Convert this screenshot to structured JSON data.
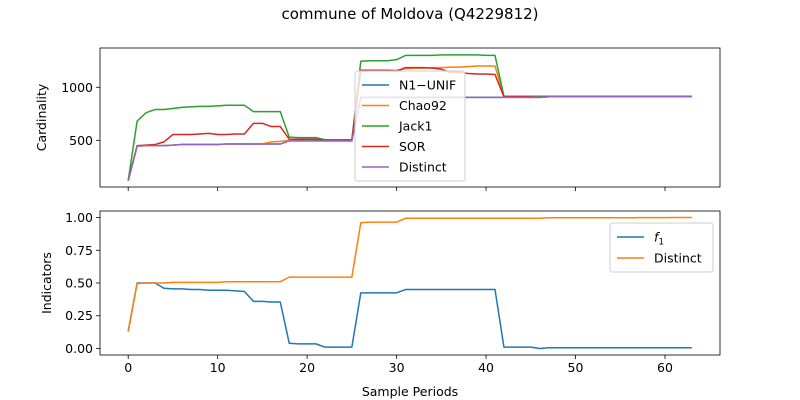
{
  "title": "commune of Moldova (Q4229812)",
  "colors": {
    "blue": "#1f77b4",
    "orange": "#ff7f0e",
    "green": "#2ca02c",
    "red": "#d62728",
    "purple": "#9467bd"
  },
  "chart_data": [
    {
      "type": "line",
      "xlabel": "",
      "ylabel": "Cardinality",
      "xlim": [
        -3.15,
        66.15
      ],
      "ylim": [
        60,
        1370
      ],
      "xticks": [
        0,
        10,
        20,
        30,
        40,
        50,
        60
      ],
      "xticklabels": [
        "",
        "",
        "",
        "",
        "",
        "",
        ""
      ],
      "yticks": [
        500,
        1000
      ],
      "yticklabels": [
        "500",
        "1000"
      ],
      "legend_position": "center",
      "series": [
        {
          "name": "N1−UNIF",
          "color": "#1f77b4",
          "x": [
            0,
            1,
            2,
            3,
            4,
            5,
            6,
            7,
            8,
            9,
            10,
            11,
            12,
            13,
            14,
            15,
            16,
            17,
            18,
            19,
            20,
            21,
            22,
            23,
            24,
            25,
            26,
            27,
            28,
            29,
            30,
            31,
            32,
            33,
            34,
            35,
            36,
            37,
            38,
            39,
            40,
            41,
            42,
            43,
            44,
            45,
            46,
            47,
            48,
            49,
            50,
            51,
            52,
            53,
            54,
            55,
            56,
            57,
            58,
            59,
            60,
            61,
            62,
            63
          ],
          "y": [
            120,
            445,
            450,
            450,
            450,
            455,
            460,
            460,
            460,
            460,
            460,
            465,
            465,
            465,
            465,
            465,
            465,
            465,
            495,
            495,
            495,
            495,
            495,
            495,
            495,
            495,
            905,
            905,
            905,
            905,
            905,
            905,
            905,
            905,
            905,
            905,
            905,
            905,
            905,
            905,
            905,
            905,
            905,
            905,
            905,
            905,
            905,
            910,
            910,
            910,
            910,
            910,
            910,
            910,
            910,
            910,
            910,
            910,
            910,
            910,
            910,
            910,
            910,
            910
          ]
        },
        {
          "name": "Chao92",
          "color": "#ff7f0e",
          "x": [
            0,
            1,
            2,
            3,
            4,
            5,
            6,
            7,
            8,
            9,
            10,
            11,
            12,
            13,
            14,
            15,
            16,
            17,
            18,
            19,
            20,
            21,
            22,
            23,
            24,
            25,
            26,
            27,
            28,
            29,
            30,
            31,
            32,
            33,
            34,
            35,
            36,
            37,
            38,
            39,
            40,
            41,
            42,
            43,
            44,
            45,
            46,
            47,
            48,
            49,
            50,
            51,
            52,
            53,
            54,
            55,
            56,
            57,
            58,
            59,
            60,
            61,
            62,
            63
          ],
          "y": [
            120,
            445,
            450,
            450,
            450,
            455,
            460,
            460,
            460,
            460,
            460,
            465,
            465,
            465,
            465,
            465,
            485,
            490,
            500,
            500,
            500,
            500,
            500,
            500,
            500,
            500,
            1150,
            1155,
            1160,
            1160,
            1160,
            1175,
            1180,
            1180,
            1185,
            1185,
            1190,
            1190,
            1195,
            1200,
            1200,
            1200,
            915,
            915,
            915,
            915,
            915,
            915,
            915,
            915,
            915,
            915,
            915,
            915,
            915,
            915,
            915,
            915,
            915,
            915,
            915,
            915,
            915,
            915
          ]
        },
        {
          "name": "Jack1",
          "color": "#2ca02c",
          "x": [
            0,
            1,
            2,
            3,
            4,
            5,
            6,
            7,
            8,
            9,
            10,
            11,
            12,
            13,
            14,
            15,
            16,
            17,
            18,
            19,
            20,
            21,
            22,
            23,
            24,
            25,
            26,
            27,
            28,
            29,
            30,
            31,
            32,
            33,
            34,
            35,
            36,
            37,
            38,
            39,
            40,
            41,
            42,
            43,
            44,
            45,
            46,
            47,
            48,
            49,
            50,
            51,
            52,
            53,
            54,
            55,
            56,
            57,
            58,
            59,
            60,
            61,
            62,
            63
          ],
          "y": [
            120,
            680,
            760,
            790,
            790,
            800,
            810,
            815,
            820,
            820,
            825,
            830,
            830,
            830,
            770,
            770,
            770,
            770,
            530,
            525,
            525,
            525,
            505,
            505,
            505,
            505,
            1245,
            1250,
            1250,
            1250,
            1260,
            1300,
            1300,
            1300,
            1300,
            1305,
            1305,
            1305,
            1305,
            1305,
            1300,
            1300,
            915,
            915,
            915,
            915,
            915,
            915,
            915,
            915,
            915,
            915,
            915,
            915,
            915,
            915,
            915,
            915,
            915,
            915,
            915,
            915,
            915,
            915
          ]
        },
        {
          "name": "SOR",
          "color": "#d62728",
          "x": [
            0,
            1,
            2,
            3,
            4,
            5,
            6,
            7,
            8,
            9,
            10,
            11,
            12,
            13,
            14,
            15,
            16,
            17,
            18,
            19,
            20,
            21,
            22,
            23,
            24,
            25,
            26,
            27,
            28,
            29,
            30,
            31,
            32,
            33,
            34,
            35,
            36,
            37,
            38,
            39,
            40,
            41,
            42,
            43,
            44,
            45,
            46,
            47,
            48,
            49,
            50,
            51,
            52,
            53,
            54,
            55,
            56,
            57,
            58,
            59,
            60,
            61,
            62,
            63
          ],
          "y": [
            120,
            450,
            455,
            460,
            485,
            555,
            555,
            555,
            560,
            565,
            555,
            555,
            560,
            560,
            660,
            660,
            630,
            630,
            510,
            510,
            510,
            510,
            500,
            500,
            500,
            500,
            1160,
            1160,
            1160,
            1160,
            1150,
            1185,
            1185,
            1185,
            1180,
            1170,
            1140,
            1140,
            1130,
            1125,
            1125,
            1120,
            910,
            910,
            910,
            910,
            905,
            910,
            910,
            910,
            910,
            910,
            910,
            910,
            910,
            910,
            910,
            910,
            910,
            910,
            910,
            910,
            910,
            910
          ]
        },
        {
          "name": "Distinct",
          "color": "#9467bd",
          "x": [
            0,
            1,
            2,
            3,
            4,
            5,
            6,
            7,
            8,
            9,
            10,
            11,
            12,
            13,
            14,
            15,
            16,
            17,
            18,
            19,
            20,
            21,
            22,
            23,
            24,
            25,
            26,
            27,
            28,
            29,
            30,
            31,
            32,
            33,
            34,
            35,
            36,
            37,
            38,
            39,
            40,
            41,
            42,
            43,
            44,
            45,
            46,
            47,
            48,
            49,
            50,
            51,
            52,
            53,
            54,
            55,
            56,
            57,
            58,
            59,
            60,
            61,
            62,
            63
          ],
          "y": [
            120,
            445,
            450,
            450,
            450,
            455,
            460,
            460,
            460,
            460,
            460,
            465,
            465,
            465,
            465,
            465,
            465,
            465,
            495,
            495,
            495,
            495,
            495,
            495,
            495,
            495,
            905,
            905,
            905,
            905,
            905,
            905,
            905,
            905,
            905,
            905,
            905,
            905,
            905,
            905,
            905,
            905,
            905,
            905,
            905,
            905,
            905,
            910,
            910,
            910,
            910,
            910,
            910,
            910,
            910,
            910,
            910,
            910,
            910,
            910,
            910,
            910,
            910,
            910
          ]
        }
      ]
    },
    {
      "type": "line",
      "xlabel": "Sample Periods",
      "ylabel": "Indicators",
      "xlim": [
        -3.15,
        66.15
      ],
      "ylim": [
        -0.05,
        1.05
      ],
      "xticks": [
        0,
        10,
        20,
        30,
        40,
        50,
        60
      ],
      "xticklabels": [
        "0",
        "10",
        "20",
        "30",
        "40",
        "50",
        "60"
      ],
      "yticks": [
        0.0,
        0.25,
        0.5,
        0.75,
        1.0
      ],
      "yticklabels": [
        "0.00",
        "0.25",
        "0.50",
        "0.75",
        "1.00"
      ],
      "legend_position": "upper right",
      "series": [
        {
          "name": "f1",
          "color": "#1f77b4",
          "x": [
            0,
            1,
            2,
            3,
            4,
            5,
            6,
            7,
            8,
            9,
            10,
            11,
            12,
            13,
            14,
            15,
            16,
            17,
            18,
            19,
            20,
            21,
            22,
            23,
            24,
            25,
            26,
            27,
            28,
            29,
            30,
            31,
            32,
            33,
            34,
            35,
            36,
            37,
            38,
            39,
            40,
            41,
            42,
            43,
            44,
            45,
            46,
            47,
            48,
            49,
            50,
            51,
            52,
            53,
            54,
            55,
            56,
            57,
            58,
            59,
            60,
            61,
            62,
            63
          ],
          "y": [
            0.13,
            0.5,
            0.5,
            0.5,
            0.46,
            0.455,
            0.455,
            0.45,
            0.45,
            0.445,
            0.445,
            0.445,
            0.44,
            0.435,
            0.36,
            0.36,
            0.355,
            0.355,
            0.04,
            0.035,
            0.035,
            0.035,
            0.01,
            0.01,
            0.01,
            0.01,
            0.425,
            0.425,
            0.425,
            0.425,
            0.425,
            0.45,
            0.45,
            0.45,
            0.45,
            0.45,
            0.45,
            0.45,
            0.45,
            0.45,
            0.45,
            0.45,
            0.01,
            0.01,
            0.01,
            0.01,
            0.0,
            0.005,
            0.005,
            0.005,
            0.005,
            0.005,
            0.005,
            0.005,
            0.005,
            0.005,
            0.005,
            0.005,
            0.005,
            0.005,
            0.005,
            0.005,
            0.005,
            0.005
          ]
        },
        {
          "name": "Distinct",
          "color": "#ff7f0e",
          "x": [
            0,
            1,
            2,
            3,
            4,
            5,
            6,
            7,
            8,
            9,
            10,
            11,
            12,
            13,
            14,
            15,
            16,
            17,
            18,
            19,
            20,
            21,
            22,
            23,
            24,
            25,
            26,
            27,
            28,
            29,
            30,
            31,
            32,
            33,
            34,
            35,
            36,
            37,
            38,
            39,
            40,
            41,
            42,
            43,
            44,
            45,
            46,
            47,
            48,
            49,
            50,
            51,
            52,
            53,
            54,
            55,
            56,
            57,
            58,
            59,
            60,
            61,
            62,
            63
          ],
          "y": [
            0.13,
            0.495,
            0.5,
            0.5,
            0.5,
            0.505,
            0.505,
            0.505,
            0.505,
            0.505,
            0.505,
            0.51,
            0.51,
            0.51,
            0.51,
            0.51,
            0.51,
            0.51,
            0.545,
            0.545,
            0.545,
            0.545,
            0.545,
            0.545,
            0.545,
            0.545,
            0.96,
            0.965,
            0.965,
            0.965,
            0.965,
            0.995,
            0.995,
            0.995,
            0.995,
            0.995,
            0.995,
            0.995,
            0.995,
            0.995,
            0.995,
            0.995,
            0.995,
            0.995,
            0.995,
            0.995,
            0.995,
            0.998,
            0.998,
            0.998,
            0.998,
            0.998,
            0.998,
            0.998,
            0.998,
            0.998,
            0.998,
            0.999,
            0.999,
            0.999,
            0.999,
            1.0,
            1.0,
            1.0
          ]
        }
      ]
    }
  ]
}
